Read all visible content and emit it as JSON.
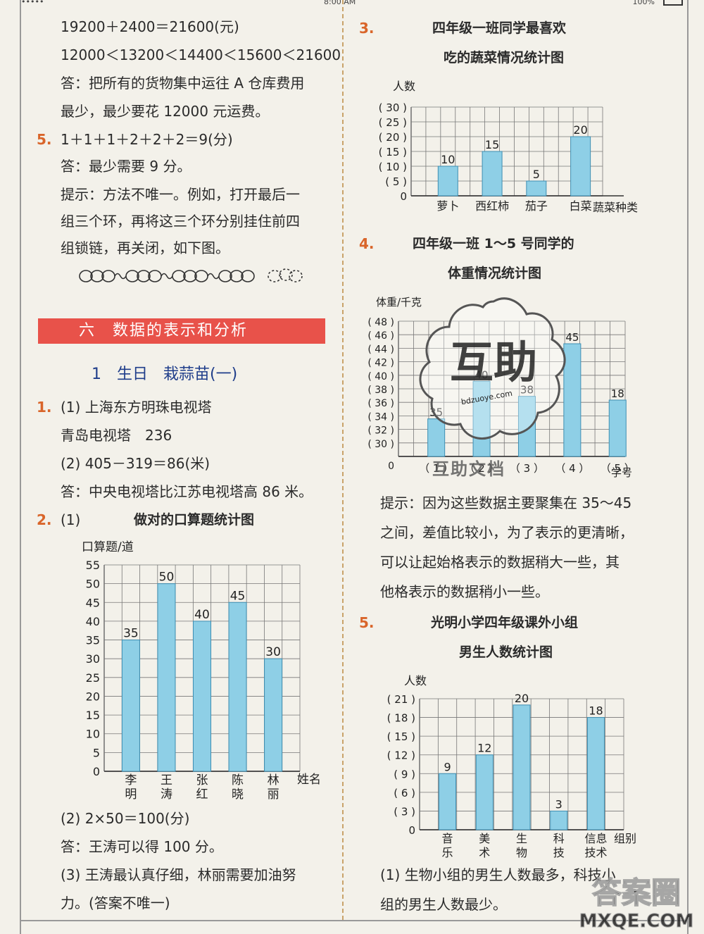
{
  "status_bar": {
    "left": "••••• ",
    "time": "8:00 AM",
    "battery": "100%"
  },
  "left": {
    "lines": [
      "19200＋2400＝21600(元)",
      "12000＜13200＜14400＜15600＜21600",
      "答：把所有的货物集中运往 A 仓库费用",
      "最少，最少要花 12000 元运费。"
    ],
    "q5": {
      "num": "5.",
      "line1": "1＋1＋1＋2＋2＋2＝9(分)",
      "line2": "答：最少需要 9 分。",
      "line3": "提示：方法不唯一。例如，打开最后一",
      "line4": "组三个环，再将这三个环分别挂住前四",
      "line5": "组锁链，再关闭，如下图。"
    },
    "section_banner": "六　数据的表示和分析",
    "subtitle": "1　生日　栽蒜苗(一)",
    "q1": {
      "num": "1.",
      "l1": "(1) 上海东方明珠电视塔",
      "l2": "青岛电视塔　236",
      "l3": "(2) 405－319＝86(米)",
      "l4": "答：中央电视塔比江苏电视塔高 86 米。"
    },
    "q2": {
      "num": "2.",
      "part1": "(1)",
      "after1": "(2) 2×50＝100(分)",
      "after2": "答：王涛可以得 100 分。",
      "after3": "(3) 王涛最认真仔细，林丽需要加油努",
      "after4": "力。(答案不唯一)"
    }
  },
  "right": {
    "q3": {
      "num": "3.",
      "title1": "四年级一班同学最喜欢",
      "title2": "吃的蔬菜情况统计图"
    },
    "q4": {
      "num": "4.",
      "title1": "四年级一班 1～5 号同学的",
      "title2": "体重情况统计图",
      "hint1": "提示：因为这些数据主要聚集在 35～45",
      "hint2": "之间，差值比较小，为了表示的更清晰，",
      "hint3": "可以让起始格表示的数据稍大一些，其",
      "hint4": "他格表示的数据稍小一些。"
    },
    "q5": {
      "num": "5.",
      "title1": "光明小学四年级课外小组",
      "title2": "男生人数统计图",
      "ans1": "(1) 生物小组的男生人数最多，科技小",
      "ans2": "组的男生人数最少。"
    }
  },
  "watermark": {
    "stamp_text": "互助",
    "url": "bdzuoye.com",
    "bottom": "互助文档",
    "corner": "答案圈",
    "corner_url": "MXQE.COM"
  },
  "chart_data": [
    {
      "id": "oral",
      "type": "bar",
      "title": "做对的口算题统计图",
      "ylabel": "口算题/道",
      "xlabel": "姓名",
      "categories": [
        "李明",
        "王涛",
        "张红",
        "陈晓",
        "林丽"
      ],
      "category_lines": [
        [
          "李",
          "明"
        ],
        [
          "王",
          "涛"
        ],
        [
          "张",
          "红"
        ],
        [
          "陈",
          "晓"
        ],
        [
          "林",
          "丽"
        ]
      ],
      "values": [
        35,
        50,
        40,
        45,
        30
      ],
      "yticks": [
        "0",
        "5",
        "10",
        "15",
        "20",
        "25",
        "30",
        "35",
        "40",
        "45",
        "50",
        "55"
      ],
      "ylim": [
        0,
        55
      ]
    },
    {
      "id": "veg",
      "type": "bar",
      "title": "四年级一班同学最喜欢吃的蔬菜情况统计图",
      "ylabel": "人数",
      "xlabel": "蔬菜种类",
      "categories": [
        "萝卜",
        "西红柿",
        "茄子",
        "白菜"
      ],
      "values": [
        10,
        15,
        5,
        20
      ],
      "yticks": [
        "0",
        "( 5 )",
        "( 10 )",
        "( 15 )",
        "( 20 )",
        "( 25 )",
        "( 30 )"
      ],
      "ylim": [
        0,
        30
      ]
    },
    {
      "id": "weight",
      "type": "bar",
      "title": "四年级一班 1～5 号同学的体重情况统计图",
      "ylabel": "体重/千克",
      "xlabel": "学号",
      "categories": [
        "（ 1 ）",
        "（ 2 ）",
        "（ 3 ）",
        "（ 4 ）",
        "（ 5 ）"
      ],
      "values": [
        35,
        40,
        38,
        45,
        18
      ],
      "value_labels": [
        "35",
        "40",
        "38",
        "45",
        "18"
      ],
      "yticks": [
        "0",
        "( 30 )",
        "( 32 )",
        "( 34 )",
        "( 36 )",
        "( 38 )",
        "( 40 )",
        "( 42 )",
        "( 44 )",
        "( 46 )",
        "( 48 )"
      ],
      "ylim": [
        30,
        48
      ]
    },
    {
      "id": "club",
      "type": "bar",
      "title": "光明小学四年级课外小组男生人数统计图",
      "ylabel": "人数",
      "xlabel": "组别",
      "categories": [
        "音乐",
        "美术",
        "生物",
        "科技",
        "信息技术"
      ],
      "category_lines": [
        [
          "音",
          "乐"
        ],
        [
          "美",
          "术"
        ],
        [
          "生",
          "物"
        ],
        [
          "科",
          "技"
        ],
        [
          "信息",
          "技术"
        ]
      ],
      "values": [
        9,
        12,
        20,
        3,
        18
      ],
      "yticks": [
        "0",
        "( 3 )",
        "( 6 )",
        "( 9 )",
        "( 12 )",
        "( 15 )",
        "( 18 )",
        "( 21 )"
      ],
      "ylim": [
        0,
        21
      ]
    }
  ]
}
